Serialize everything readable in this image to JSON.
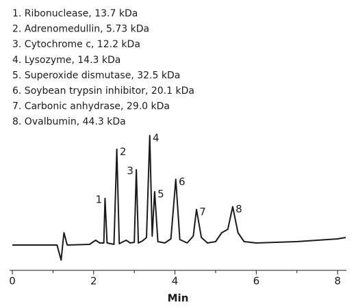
{
  "chart_data": {
    "type": "line",
    "legend_items": [
      "1. Ribonuclease, 13.7 kDa",
      "2. Adrenomedullin, 5.73 kDa",
      "3. Cytochrome c, 12.2 kDa",
      "4. Lysozyme, 14.3 kDa",
      "5. Superoxide dismutase, 32.5 kDa",
      "6. Soybean trypsin inhibitor, 20.1 kDa",
      "7. Carbonic anhydrase, 29.0 kDa",
      "8. Ovalbumin, 44.3 kDa"
    ],
    "x_label": "Min",
    "xlim": [
      0,
      8.2
    ],
    "xticks": [
      0,
      2,
      4,
      6,
      8
    ],
    "xminorticks": [
      1,
      3,
      5,
      7
    ],
    "ylim": [
      0,
      200
    ],
    "color": "#1a1a1a",
    "series": [
      {
        "name": "Trace",
        "color": "#1a1a1a",
        "x": [
          0,
          1.1,
          1.2,
          1.27,
          1.35,
          1.9,
          2.05,
          2.15,
          2.25,
          2.28,
          2.33,
          2.5,
          2.57,
          2.63,
          2.8,
          2.9,
          3.0,
          3.05,
          3.1,
          3.2,
          3.3,
          3.38,
          3.44,
          3.5,
          3.58,
          3.75,
          3.9,
          4.02,
          4.12,
          4.3,
          4.45,
          4.53,
          4.65,
          4.8,
          5.0,
          5.15,
          5.3,
          5.42,
          5.55,
          5.7,
          6.0,
          7.0,
          8.0,
          8.2
        ],
        "values": [
          37,
          37,
          15,
          55,
          37,
          38,
          44,
          40,
          40,
          105,
          40,
          38,
          177,
          39,
          44,
          40,
          41,
          147,
          40,
          43,
          48,
          197,
          50,
          115,
          42,
          40,
          46,
          133,
          45,
          40,
          50,
          89,
          48,
          40,
          42,
          55,
          60,
          93,
          55,
          42,
          40,
          42,
          46,
          48
        ]
      }
    ],
    "peaks": [
      {
        "label": "1",
        "x": 2.28
      },
      {
        "label": "2",
        "x": 2.57
      },
      {
        "label": "3",
        "x": 3.05
      },
      {
        "label": "4",
        "x": 3.38
      },
      {
        "label": "5",
        "x": 3.5
      },
      {
        "label": "6",
        "x": 4.02
      },
      {
        "label": "7",
        "x": 4.53
      },
      {
        "label": "8",
        "x": 5.42
      }
    ]
  }
}
